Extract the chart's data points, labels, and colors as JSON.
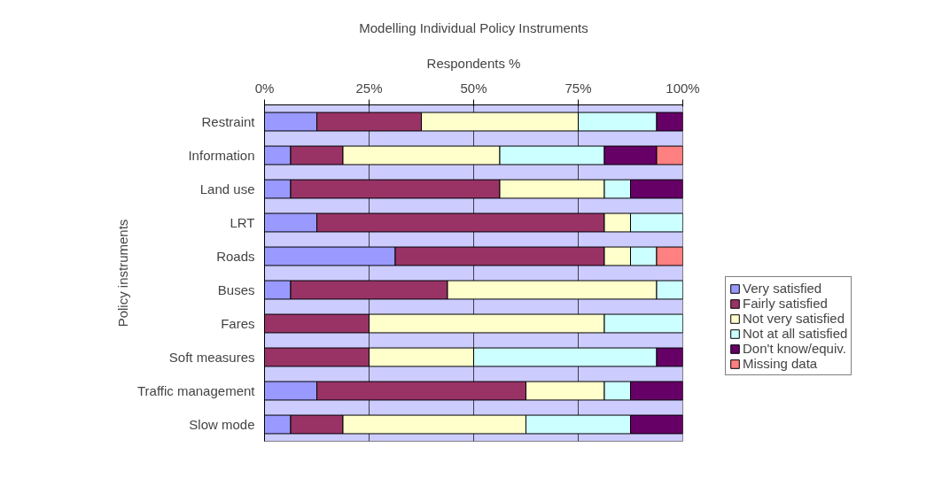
{
  "chart_data": {
    "type": "bar",
    "orientation": "horizontal",
    "stacked": true,
    "title": "Modelling Individual Policy Instruments",
    "xlabel": "Respondents %",
    "ylabel": "Policy instruments",
    "categories": [
      "Restraint",
      "Information",
      "Land use",
      "LRT",
      "Roads",
      "Buses",
      "Fares",
      "Soft measures",
      "Traffic management",
      "Slow mode"
    ],
    "series": [
      {
        "name": "Very satisfied",
        "color": "#9999ff",
        "values": [
          12.5,
          6.25,
          6.25,
          12.5,
          31.25,
          6.25,
          0,
          0,
          12.5,
          6.25
        ]
      },
      {
        "name": "Fairly satisfied",
        "color": "#993366",
        "values": [
          25,
          12.5,
          50,
          68.75,
          50,
          37.5,
          25,
          25,
          50,
          12.5
        ]
      },
      {
        "name": "Not very satisfied",
        "color": "#ffffcc",
        "values": [
          37.5,
          37.5,
          25,
          6.25,
          6.25,
          50,
          56.25,
          25,
          18.75,
          43.75
        ]
      },
      {
        "name": "Not at all satisfied",
        "color": "#ccffff",
        "values": [
          18.75,
          25,
          6.25,
          12.5,
          6.25,
          6.25,
          18.75,
          43.75,
          6.25,
          25
        ]
      },
      {
        "name": "Don't know/equiv.",
        "color": "#660066",
        "values": [
          6.25,
          12.5,
          12.5,
          0,
          0,
          0,
          0,
          6.25,
          12.5,
          12.5
        ]
      },
      {
        "name": "Missing data",
        "color": "#ff8080",
        "values": [
          0,
          6.25,
          0,
          0,
          6.25,
          0,
          0,
          0,
          0,
          0
        ]
      }
    ],
    "xlim": [
      0,
      100
    ],
    "xticks": [
      {
        "value": 0,
        "label": "0%"
      },
      {
        "value": 25,
        "label": "25%"
      },
      {
        "value": 50,
        "label": "50%"
      },
      {
        "value": 75,
        "label": "75%"
      },
      {
        "value": 100,
        "label": "100%"
      }
    ],
    "grid": "x",
    "legend": "right"
  }
}
